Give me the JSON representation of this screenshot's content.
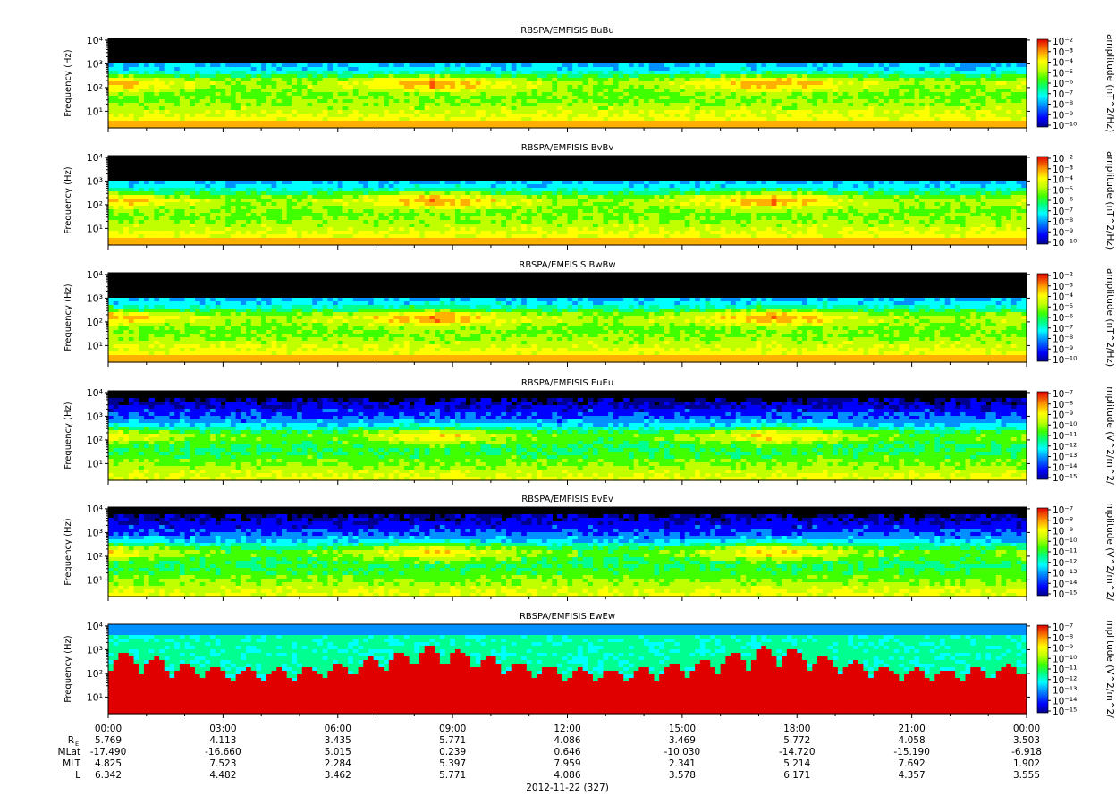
{
  "chart_data": {
    "type": "heatmap",
    "panels": [
      {
        "title": "RBSPA/EMFISIS  BuBu",
        "ylabel": "Frequency (Hz)",
        "cblabel": "amplitude (nT^2/Hz)",
        "cb_ticks": [
          "10⁻²",
          "10⁻³",
          "10⁻⁴",
          "10⁻⁵",
          "10⁻⁶",
          "10⁻⁷",
          "10⁻⁸",
          "10⁻⁹",
          "10⁻¹⁰"
        ],
        "kind": "B"
      },
      {
        "title": "RBSPA/EMFISIS  BvBv",
        "ylabel": "Frequency (Hz)",
        "cblabel": "amplitude (nT^2/Hz)",
        "cb_ticks": [
          "10⁻²",
          "10⁻³",
          "10⁻⁴",
          "10⁻⁵",
          "10⁻⁶",
          "10⁻⁷",
          "10⁻⁸",
          "10⁻⁹",
          "10⁻¹⁰"
        ],
        "kind": "B"
      },
      {
        "title": "RBSPA/EMFISIS  BwBw",
        "ylabel": "Frequency (Hz)",
        "cblabel": "amplitude (nT^2/Hz)",
        "cb_ticks": [
          "10⁻²",
          "10⁻³",
          "10⁻⁴",
          "10⁻⁵",
          "10⁻⁶",
          "10⁻⁷",
          "10⁻⁸",
          "10⁻⁹",
          "10⁻¹⁰"
        ],
        "kind": "B"
      },
      {
        "title": "RBSPA/EMFISIS  EuEu",
        "ylabel": "Frequency (Hz)",
        "cblabel": "mplitude (V^2/m^2/",
        "cb_ticks": [
          "10⁻⁷",
          "10⁻⁸",
          "10⁻⁹",
          "10⁻¹⁰",
          "10⁻¹¹",
          "10⁻¹²",
          "10⁻¹³",
          "10⁻¹⁴",
          "10⁻¹⁵"
        ],
        "kind": "E"
      },
      {
        "title": "RBSPA/EMFISIS  EvEv",
        "ylabel": "Frequency (Hz)",
        "cblabel": "mplitude (V^2/m^2/",
        "cb_ticks": [
          "10⁻⁷",
          "10⁻⁸",
          "10⁻⁹",
          "10⁻¹⁰",
          "10⁻¹¹",
          "10⁻¹²",
          "10⁻¹³",
          "10⁻¹⁴",
          "10⁻¹⁵"
        ],
        "kind": "E"
      },
      {
        "title": "RBSPA/EMFISIS  EwEw",
        "ylabel": "Frequency (Hz)",
        "cblabel": "mplitude (V^2/m^2/",
        "cb_ticks": [
          "10⁻⁷",
          "10⁻⁸",
          "10⁻⁹",
          "10⁻¹⁰",
          "10⁻¹¹",
          "10⁻¹²",
          "10⁻¹³",
          "10⁻¹⁴",
          "10⁻¹⁵"
        ],
        "kind": "Ew"
      }
    ],
    "y_scale": "log",
    "y_ticks": [
      "10¹",
      "10²",
      "10³",
      "10⁴"
    ],
    "x_ticks": [
      "00:00",
      "03:00",
      "06:00",
      "09:00",
      "12:00",
      "15:00",
      "18:00",
      "21:00",
      "00:00"
    ],
    "ephemeris_labels": [
      "RE",
      "MLat",
      "MLT",
      "L"
    ],
    "ephemeris": {
      "RE": [
        "5.769",
        "4.113",
        "3.435",
        "5.771",
        "4.086",
        "3.469",
        "5.772",
        "4.058",
        "3.503"
      ],
      "MLat": [
        "-17.490",
        "-16.660",
        "5.015",
        "0.239",
        "0.646",
        "-10.030",
        "-14.720",
        "-15.190",
        "-6.918"
      ],
      "MLT": [
        "4.825",
        "7.523",
        "2.284",
        "5.397",
        "7.959",
        "2.341",
        "5.214",
        "7.692",
        "1.902"
      ],
      "L": [
        "6.342",
        "4.482",
        "3.462",
        "5.771",
        "4.086",
        "3.578",
        "6.171",
        "4.357",
        "3.555"
      ]
    },
    "date_label": "2012-11-22 (327)",
    "colormap": [
      "#000090",
      "#0000ff",
      "#0090ff",
      "#00ffff",
      "#00ff90",
      "#40ff00",
      "#c0ff00",
      "#ffff00",
      "#ffb000",
      "#ff5000",
      "#e00000"
    ]
  }
}
